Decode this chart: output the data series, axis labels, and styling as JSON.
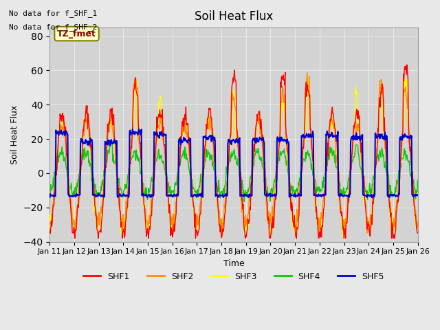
{
  "title": "Soil Heat Flux",
  "ylabel": "Soil Heat Flux",
  "xlabel": "Time",
  "ylim": [
    -40,
    85
  ],
  "yticks": [
    -40,
    -20,
    0,
    20,
    40,
    60,
    80
  ],
  "background_color": "#e8e8e8",
  "plot_bg_color": "#d3d3d3",
  "header_text": [
    "No data for f_SHF_1",
    "No data for f_SHF_2"
  ],
  "legend_label": "TZ_fmet",
  "series_colors": {
    "SHF1": "#ff0000",
    "SHF2": "#ff8c00",
    "SHF3": "#ffff00",
    "SHF4": "#00cc00",
    "SHF5": "#0000cc"
  },
  "n_days": 15,
  "start_day": 11,
  "end_day": 26,
  "points_per_day": 48,
  "tick_labels": [
    "Jan 11",
    "Jan 12",
    "Jan 13",
    "Jan 14",
    "Jan 15",
    "Jan 16",
    "Jan 17",
    "Jan 18",
    "Jan 19",
    "Jan 20",
    "Jan 21",
    "Jan 22",
    "Jan 23",
    "Jan 24",
    "Jan 25",
    "Jan 26"
  ]
}
